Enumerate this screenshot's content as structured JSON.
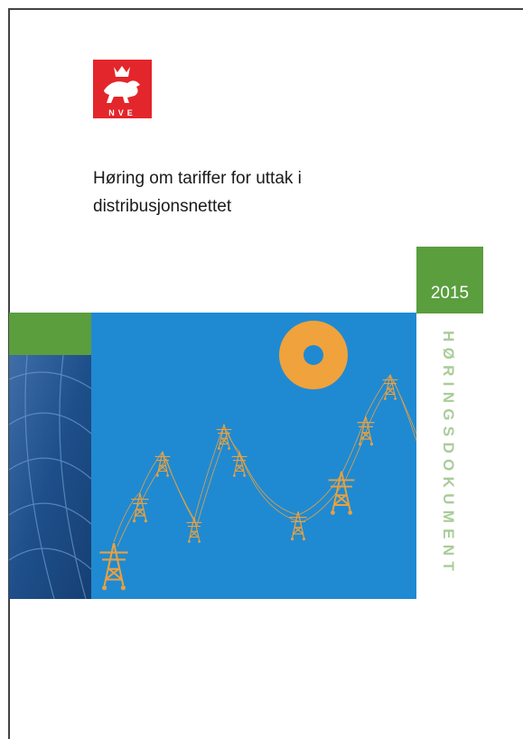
{
  "logo": {
    "text": "NVE"
  },
  "title": [
    "Høring om tariffer for uttak i",
    "distribusjonsnettet"
  ],
  "year": "2015",
  "document_type": "HØRINGSDOKUMENT"
}
